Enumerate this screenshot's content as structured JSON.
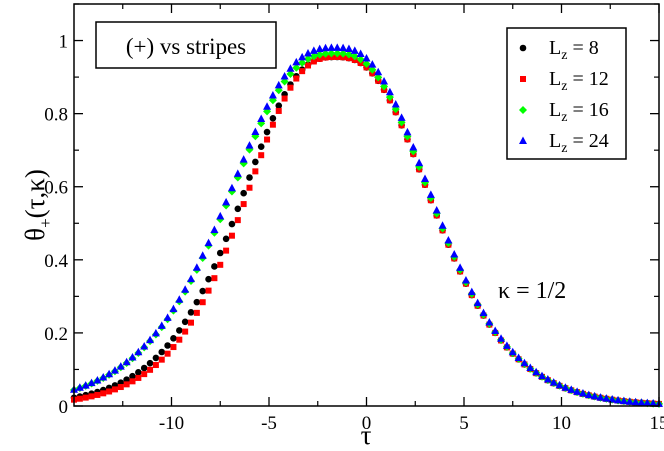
{
  "chart_data": {
    "type": "scatter",
    "title": "(+) vs stripes",
    "xlabel": "τ",
    "ylabel_parts": {
      "main": "θ",
      "sub": "+",
      "args": "(τ,κ)"
    },
    "annotation": "κ = 1/2",
    "xlim": [
      -15,
      15
    ],
    "ylim": [
      0,
      1.1
    ],
    "grid": false,
    "legend_position": "top-right",
    "x_ticks": [
      -10,
      -5,
      0,
      5,
      10,
      15
    ],
    "x_tick_labels": [
      "-10",
      "-5",
      "0",
      "5",
      "10",
      "15"
    ],
    "y_ticks": [
      0,
      0.2,
      0.4,
      0.6,
      0.8,
      1
    ],
    "y_tick_labels": [
      "0",
      "0.2",
      "0.4",
      "0.6",
      "0.8",
      "1"
    ],
    "legend": [
      {
        "L": "L",
        "sub": "z",
        "rest": " = 8"
      },
      {
        "L": "L",
        "sub": "z",
        "rest": " = 12"
      },
      {
        "L": "L",
        "sub": "z",
        "rest": " = 16"
      },
      {
        "L": "L",
        "sub": "z",
        "rest": " = 24"
      }
    ],
    "series": [
      {
        "name": "Lz = 8",
        "color": "#000000",
        "marker": "circle",
        "x_range": [
          -15,
          15
        ],
        "step": 0.3,
        "curve": {
          "peak": 0.955,
          "center": -1.6,
          "left_k": 0.225,
          "left_p": 1.35,
          "right_k": 0.222,
          "right_p": 1.35
        }
      },
      {
        "name": "Lz = 12",
        "color": "#ff0000",
        "marker": "square",
        "x_range": [
          -15,
          15
        ],
        "step": 0.3,
        "curve": {
          "peak": 0.955,
          "center": -1.6,
          "left_k": 0.235,
          "left_p": 1.35,
          "right_k": 0.222,
          "right_p": 1.35
        }
      },
      {
        "name": "Lz = 16",
        "color": "#00ff00",
        "marker": "diamond",
        "x_range": [
          -15,
          15
        ],
        "step": 0.3,
        "curve": {
          "peak": 0.965,
          "center": -1.6,
          "left_k": 0.2,
          "left_p": 1.35,
          "right_k": 0.222,
          "right_p": 1.35
        }
      },
      {
        "name": "Lz = 24",
        "color": "#0000ff",
        "marker": "triangle",
        "x_range": [
          -15,
          15
        ],
        "step": 0.3,
        "curve": {
          "peak": 0.98,
          "center": -1.6,
          "left_k": 0.2,
          "left_p": 1.35,
          "right_k": 0.222,
          "right_p": 1.35
        }
      }
    ]
  }
}
